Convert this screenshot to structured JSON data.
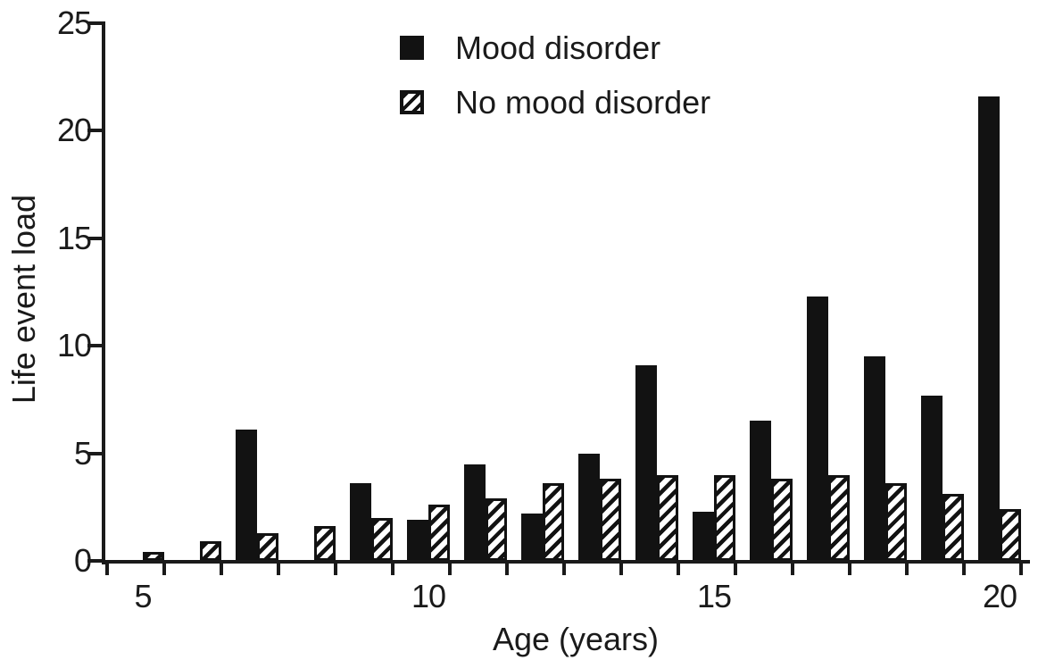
{
  "figure": {
    "background": "#ffffff",
    "ink_color": "#1a1a1a",
    "bar_color": "#121212"
  },
  "chart_data": {
    "type": "bar",
    "title": "",
    "xlabel": "Age (years)",
    "ylabel": "Life event load",
    "categories": [
      5,
      6,
      7,
      8,
      9,
      10,
      11,
      12,
      13,
      14,
      15,
      16,
      17,
      18,
      19,
      20
    ],
    "x_tick_labels": [
      5,
      10,
      15,
      20
    ],
    "y_ticks": [
      0,
      5,
      10,
      15,
      20,
      25
    ],
    "ylim": [
      0,
      25
    ],
    "grid": false,
    "legend_position": "top-center",
    "series": [
      {
        "name": "Mood disorder",
        "style": "solid",
        "color": "#121212",
        "values": [
          0,
          0,
          6.1,
          0,
          3.6,
          1.9,
          4.5,
          2.2,
          5.0,
          9.1,
          2.3,
          6.5,
          12.3,
          9.5,
          7.7,
          21.6
        ]
      },
      {
        "name": "No mood disorder",
        "style": "hatched",
        "color": "#121212",
        "values": [
          0.4,
          0.9,
          1.3,
          1.6,
          2.0,
          2.6,
          2.9,
          3.6,
          3.8,
          4.0,
          4.0,
          3.8,
          4.0,
          3.6,
          3.1,
          2.4
        ]
      }
    ]
  }
}
